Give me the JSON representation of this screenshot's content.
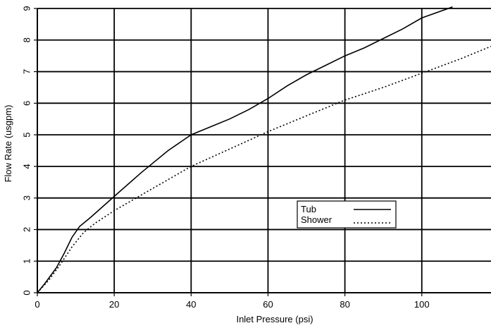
{
  "chart_data": {
    "type": "line",
    "title": "",
    "xlabel": "Inlet Pressure (psi)",
    "ylabel": "Flow Rate (usgpm)",
    "xlim": [
      0,
      118
    ],
    "ylim": [
      0,
      9
    ],
    "x_ticks": [
      "0",
      "20",
      "40",
      "60",
      "80",
      "100"
    ],
    "y_ticks": [
      "0",
      "1",
      "2",
      "3",
      "4",
      "5",
      "6",
      "7",
      "8",
      "9"
    ],
    "grid": true,
    "legend_position": "center-right",
    "series": [
      {
        "name": "Tub",
        "style": "solid",
        "color": "#000000",
        "points": [
          [
            0,
            0
          ],
          [
            2,
            0.3
          ],
          [
            5,
            0.8
          ],
          [
            7,
            1.25
          ],
          [
            9,
            1.75
          ],
          [
            11,
            2.1
          ],
          [
            14,
            2.4
          ],
          [
            20,
            3.05
          ],
          [
            27,
            3.8
          ],
          [
            34,
            4.5
          ],
          [
            40,
            5.0
          ],
          [
            45,
            5.25
          ],
          [
            50,
            5.5
          ],
          [
            55,
            5.8
          ],
          [
            60,
            6.15
          ],
          [
            65,
            6.55
          ],
          [
            70,
            6.9
          ],
          [
            75,
            7.2
          ],
          [
            80,
            7.5
          ],
          [
            85,
            7.75
          ],
          [
            90,
            8.05
          ],
          [
            95,
            8.35
          ],
          [
            100,
            8.7
          ],
          [
            108,
            9.05
          ]
        ]
      },
      {
        "name": "Shower",
        "style": "dotted",
        "color": "#000000",
        "points": [
          [
            0,
            0
          ],
          [
            3,
            0.4
          ],
          [
            6,
            0.9
          ],
          [
            9,
            1.45
          ],
          [
            12,
            1.9
          ],
          [
            15,
            2.2
          ],
          [
            20,
            2.6
          ],
          [
            30,
            3.3
          ],
          [
            40,
            4.0
          ],
          [
            50,
            4.55
          ],
          [
            60,
            5.1
          ],
          [
            70,
            5.6
          ],
          [
            80,
            6.1
          ],
          [
            90,
            6.5
          ],
          [
            100,
            6.95
          ],
          [
            110,
            7.4
          ],
          [
            118,
            7.8
          ]
        ]
      }
    ]
  }
}
